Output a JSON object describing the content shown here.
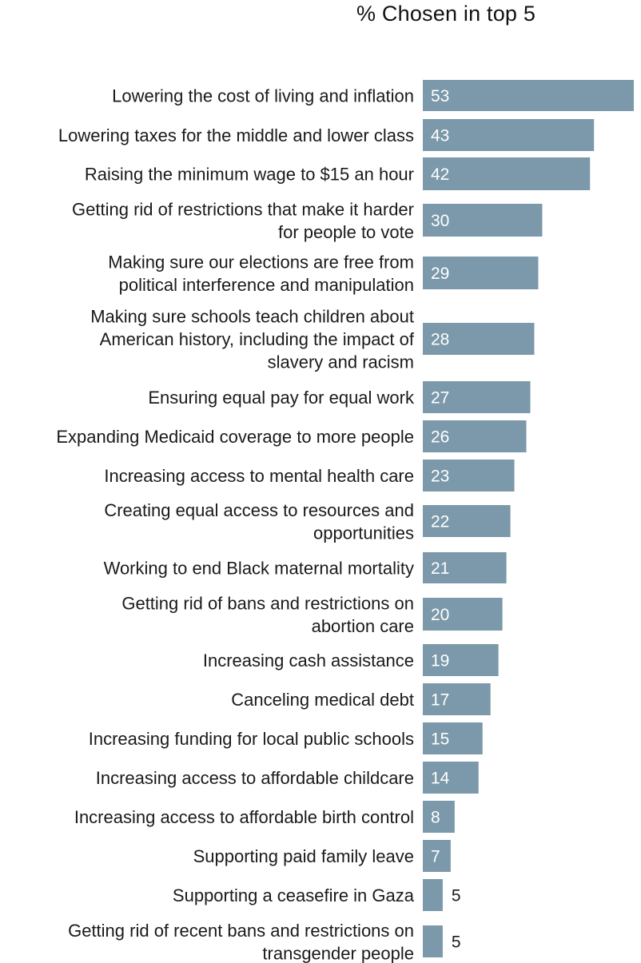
{
  "chart_data": {
    "type": "bar",
    "orientation": "horizontal",
    "title": "% Chosen in top 5",
    "bar_color": "#7b99aa",
    "categories": [
      [
        "Lowering the cost of living and inflation"
      ],
      [
        "Lowering taxes for the middle and lower class"
      ],
      [
        "Raising the minimum wage to $15 an hour"
      ],
      [
        "Getting rid of restrictions that make it harder",
        "for people to vote"
      ],
      [
        "Making sure our elections are free from",
        "political interference and manipulation"
      ],
      [
        "Making sure schools teach children about",
        "American history, including the impact of",
        "slavery and racism"
      ],
      [
        "Ensuring equal pay for equal work"
      ],
      [
        "Expanding Medicaid coverage to more people"
      ],
      [
        "Increasing access to mental health care"
      ],
      [
        "Creating equal access to resources and",
        "opportunities"
      ],
      [
        "Working to end Black maternal mortality"
      ],
      [
        "Getting rid of bans and restrictions on",
        "abortion care"
      ],
      [
        "Increasing cash assistance"
      ],
      [
        "Canceling medical debt"
      ],
      [
        "Increasing funding for local public schools"
      ],
      [
        "Increasing access to affordable childcare"
      ],
      [
        "Increasing access to affordable birth control"
      ],
      [
        "Supporting paid family leave"
      ],
      [
        "Supporting a ceasefire in Gaza"
      ],
      [
        "Getting rid of recent bans and restrictions on",
        "transgender people"
      ]
    ],
    "values": [
      53,
      43,
      42,
      30,
      29,
      28,
      27,
      26,
      23,
      22,
      21,
      20,
      19,
      17,
      15,
      14,
      8,
      7,
      5,
      5
    ],
    "xlim": [
      0,
      53
    ]
  }
}
